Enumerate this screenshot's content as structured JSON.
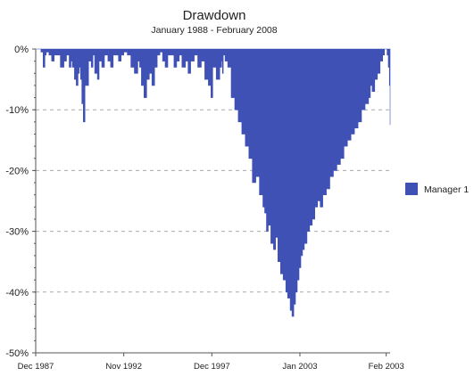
{
  "chart_data": {
    "type": "area",
    "title": "Drawdown",
    "subtitle": "January 1988 - February 2008",
    "xlabel": "",
    "ylabel": "",
    "x_tick_labels": [
      "Dec 1987",
      "Nov 1992",
      "Dec 1997",
      "Jan 2003",
      "Feb 2003"
    ],
    "y_tick_labels": [
      "0%",
      "-10%",
      "-20%",
      "-30%",
      "-40%",
      "-50%"
    ],
    "ylim": [
      -50,
      0
    ],
    "x_range": [
      "1988-01",
      "2008-02"
    ],
    "grid": "horizontal dashed",
    "legend_position": "right",
    "colors": {
      "fill": "#3f51b5",
      "grid": "#aaaaaa",
      "axis": "#555555"
    },
    "series": [
      {
        "name": "Manager 1",
        "x_format": "year fraction",
        "x": [
          1988.0,
          1988.3,
          1988.42,
          1988.52,
          1988.6,
          1988.75,
          1988.9,
          1989.05,
          1989.25,
          1989.4,
          1989.6,
          1989.75,
          1989.9,
          1990.0,
          1990.08,
          1990.2,
          1990.3,
          1990.4,
          1990.48,
          1990.55,
          1990.62,
          1990.7,
          1990.8,
          1991.0,
          1991.15,
          1991.25,
          1991.35,
          1991.5,
          1991.6,
          1991.75,
          1991.9,
          1992.1,
          1992.25,
          1992.4,
          1992.55,
          1992.7,
          1992.85,
          1993.0,
          1993.2,
          1993.4,
          1993.6,
          1993.8,
          1993.9,
          1994.0,
          1994.15,
          1994.3,
          1994.45,
          1994.6,
          1994.75,
          1994.9,
          1995.05,
          1995.2,
          1995.35,
          1995.5,
          1995.7,
          1995.85,
          1996.0,
          1996.15,
          1996.3,
          1996.5,
          1996.65,
          1996.8,
          1997.0,
          1997.2,
          1997.4,
          1997.6,
          1997.8,
          1997.95,
          1998.05,
          1998.25,
          1998.45,
          1998.55,
          1998.6,
          1998.65,
          1998.75,
          1998.9,
          1999.1,
          1999.3,
          1999.5,
          1999.7,
          1999.9,
          2000.1,
          2000.3,
          2000.5,
          2000.7,
          2000.9,
          2001.0,
          2001.1,
          2001.2,
          2001.35,
          2001.5,
          2001.62,
          2001.75,
          2001.9,
          2002.05,
          2002.2,
          2002.3,
          2002.45,
          2002.55,
          2002.65,
          2002.75,
          2002.85,
          2002.95,
          2003.05,
          2003.15,
          2003.25,
          2003.4,
          2003.55,
          2003.7,
          2003.85,
          2004.0,
          2004.15,
          2004.3,
          2004.5,
          2004.7,
          2004.9,
          2005.1,
          2005.3,
          2005.5,
          2005.7,
          2005.9,
          2006.1,
          2006.3,
          2006.5,
          2006.7,
          2006.9,
          2007.0,
          2007.1,
          2007.25,
          2007.4,
          2007.55,
          2007.7,
          2007.8,
          2007.88,
          2007.95,
          2008.02,
          2008.08,
          2008.12
        ],
        "values": [
          0,
          -0.5,
          -3,
          -1,
          -0.5,
          -1,
          -2,
          -1,
          -1,
          -3,
          -2,
          -1,
          -3,
          -2,
          -3,
          -5,
          -6,
          -4,
          -3,
          -5,
          -9,
          -12,
          -6,
          -2,
          -3,
          -1,
          -4,
          -5,
          -2,
          -3,
          -1,
          -2,
          -3,
          -1,
          -1,
          -2,
          -1,
          -0.5,
          -1,
          -3,
          -4,
          -2,
          -3,
          -6,
          -8,
          -5,
          -4,
          -6,
          -3,
          -1,
          -0.5,
          -2,
          -3,
          -1,
          -1,
          -3,
          -2,
          -1,
          -3,
          -2,
          -4,
          -2,
          -1,
          -3,
          -2,
          -5,
          -6,
          -8,
          -3,
          -5,
          -3,
          -2,
          -4,
          -1,
          -2,
          -3,
          -8,
          -10,
          -12,
          -14,
          -16,
          -18,
          -22,
          -21,
          -24,
          -26,
          -27,
          -30,
          -29,
          -32,
          -33,
          -31,
          -35,
          -37,
          -38,
          -40,
          -41,
          -43,
          -44,
          -42,
          -40,
          -38,
          -36,
          -34,
          -33,
          -32,
          -30,
          -29,
          -28,
          -26,
          -25,
          -26,
          -24,
          -23,
          -21,
          -20,
          -19,
          -18,
          -16,
          -15,
          -14,
          -13,
          -12,
          -10,
          -9,
          -8,
          -6,
          -7,
          -5,
          -4,
          -2,
          -1,
          0,
          0,
          -1,
          -3,
          -6,
          -12.5
        ]
      }
    ]
  }
}
